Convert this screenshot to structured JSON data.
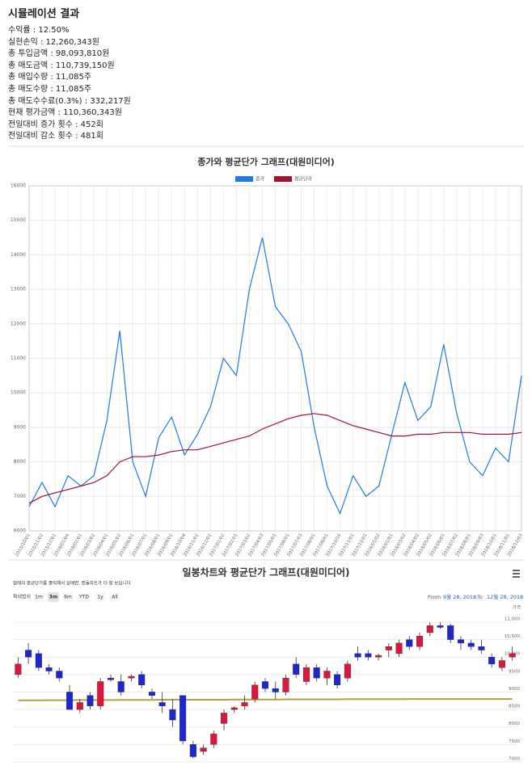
{
  "summary": {
    "title": "시뮬레이션 결과",
    "items": [
      "수익률 : 12.50%",
      "실현손익 : 12,260,343원",
      "총 투입금액 : 98,093,810원",
      "총 매도금액 : 110,739,150원",
      "총 매입수량 : 11,085주",
      "총 매도수량 : 11,085주",
      "총 매도수수료(0.3%) : 332,217원",
      "현재 평가금액 : 110,360,343원",
      "전일대비 증가 횟수 : 452회",
      "전일대비 감소 횟수 : 481회"
    ]
  },
  "chart_data": [
    {
      "type": "line",
      "title": "종가와 평균단가 그래프(대원미디어)",
      "categories": [
        "2015/10/01",
        "2015/11/02",
        "2015/12/01",
        "2016/01/04",
        "2016/02/01",
        "2016/03/02",
        "2016/04/01",
        "2016/05/02",
        "2016/06/01",
        "2016/07/01",
        "2016/08/01",
        "2016/09/01",
        "2016/10/04",
        "2016/11/01",
        "2016/12/01",
        "2017/01/02",
        "2017/02/01",
        "2017/03/02",
        "2017/04/03",
        "2017/05/01",
        "2017/06/01",
        "2017/07/03",
        "2017/08/01",
        "2017/09/01",
        "2017/10/10",
        "2017/11/01",
        "2017/12/01",
        "2018/01/02",
        "2018/02/01",
        "2018/03/02",
        "2018/04/02",
        "2018/05/02",
        "2018/06/01",
        "2018/07/02",
        "2018/08/01",
        "2018/09/03",
        "2018/10/01",
        "2018/11/01",
        "2018/12/03"
      ],
      "series": [
        {
          "name": "종가",
          "color": "#1e7be0",
          "values": [
            6700,
            7400,
            6700,
            7600,
            7300,
            7600,
            9200,
            11800,
            8000,
            7000,
            8700,
            9300,
            8200,
            8800,
            9600,
            11000,
            10500,
            13000,
            14500,
            12500,
            12000,
            11200,
            9000,
            7300,
            6500,
            7600,
            7000,
            7300,
            8800,
            10300,
            9200,
            9600,
            11400,
            9400,
            8000,
            7600,
            8400,
            8000,
            10500
          ]
        },
        {
          "name": "평균단가",
          "color": "#a0132e",
          "values": [
            6800,
            7000,
            7100,
            7200,
            7300,
            7400,
            7600,
            8000,
            8150,
            8150,
            8200,
            8300,
            8350,
            8350,
            8450,
            8550,
            8650,
            8750,
            8950,
            9100,
            9250,
            9350,
            9400,
            9350,
            9200,
            9050,
            8950,
            8850,
            8750,
            8750,
            8800,
            8800,
            8850,
            8850,
            8850,
            8800,
            8800,
            8800,
            8850
          ]
        }
      ],
      "ylim": [
        6000,
        16000
      ],
      "yticks": [
        6000,
        7000,
        8000,
        9000,
        10000,
        11000,
        12000,
        13000,
        14000,
        15000,
        16000
      ],
      "grid": true
    },
    {
      "type": "candlestick",
      "title": "일봉차트와 평균단가 그래프(대원미디어)",
      "subtitle": "범례의 평균단가를 클릭해서 없애면, 캔들차트가 더 잘 보입니다",
      "range_label": "확대범위",
      "range_buttons": [
        "1m",
        "3m",
        "6m",
        "YTD",
        "1y",
        "All"
      ],
      "range_selected": 1,
      "from_label": "From",
      "from": "9월 28, 2018",
      "to_label": "To",
      "to": "12월 28, 2018",
      "y_label": "가격",
      "up_color": "#e0143c",
      "down_color": "#1c27d0",
      "open": [
        9500,
        10200,
        10100,
        9700,
        9600,
        9000,
        8500,
        8900,
        8600,
        9400,
        9300,
        9400,
        9500,
        9000,
        8700,
        8500,
        8900,
        7500,
        7300,
        7500,
        8100,
        8500,
        8600,
        8800,
        9300,
        9100,
        9000,
        9800,
        9300,
        9700,
        9400,
        9500,
        9400,
        10100,
        10100,
        10000,
        10200,
        10100,
        10500,
        10300,
        10700,
        10900,
        10900,
        10500,
        10400,
        10300,
        10000,
        9700,
        10000
      ],
      "high": [
        10000,
        10400,
        10200,
        9800,
        9700,
        9200,
        8800,
        9000,
        9400,
        9500,
        9500,
        9500,
        9600,
        9100,
        9000,
        8800,
        8900,
        7600,
        7500,
        7900,
        8500,
        8600,
        8900,
        9300,
        9400,
        9300,
        9500,
        10000,
        9800,
        9800,
        9700,
        9600,
        9900,
        10300,
        10200,
        10100,
        10400,
        10500,
        10600,
        10700,
        11000,
        11000,
        10950,
        10600,
        10500,
        10500,
        10100,
        10000,
        10300
      ],
      "low": [
        9400,
        9800,
        9600,
        9500,
        9300,
        8500,
        8400,
        8500,
        8500,
        9300,
        8900,
        9300,
        9100,
        8800,
        8400,
        8000,
        7500,
        7100,
        7200,
        7400,
        7900,
        8400,
        8500,
        8700,
        9000,
        8800,
        8900,
        9400,
        9200,
        9300,
        9200,
        9100,
        9300,
        9900,
        9900,
        9900,
        10000,
        10000,
        10200,
        10200,
        10600,
        10800,
        10400,
        10200,
        10200,
        10100,
        9700,
        9600,
        9900
      ],
      "close": [
        9800,
        10000,
        9700,
        9600,
        9400,
        8500,
        8700,
        8600,
        9300,
        9350,
        9000,
        9450,
        9200,
        8900,
        8600,
        8200,
        7600,
        7150,
        7400,
        7800,
        8400,
        8550,
        8700,
        9200,
        9100,
        9000,
        9400,
        9500,
        9700,
        9400,
        9600,
        9200,
        9800,
        10000,
        10000,
        10050,
        10300,
        10400,
        10300,
        10600,
        10900,
        10850,
        10500,
        10400,
        10300,
        10200,
        9800,
        9900,
        10100
      ],
      "avg": {
        "color": "#b5a040",
        "values": [
          8760,
          8760,
          8760,
          8765,
          8765,
          8765,
          8770,
          8770,
          8770,
          8770,
          8775,
          8775,
          8775,
          8775,
          8780,
          8780,
          8780,
          8780,
          8780,
          8780,
          8780,
          8785,
          8785,
          8785,
          8785,
          8785,
          8790,
          8790,
          8790,
          8790,
          8790,
          8790,
          8795,
          8795,
          8795,
          8795,
          8795,
          8795,
          8800,
          8800,
          8800,
          8800,
          8800,
          8800,
          8800,
          8800,
          8800,
          8800,
          8800
        ]
      },
      "ylim": [
        6930,
        11230
      ],
      "yticks": [
        7000,
        7500,
        8000,
        8500,
        9000,
        9500,
        {
          "value": 10000,
          "label": "10,000"
        },
        {
          "value": 10500,
          "label": "10,500"
        },
        {
          "value": 11000,
          "label": "11,000"
        }
      ],
      "grid": true
    }
  ]
}
